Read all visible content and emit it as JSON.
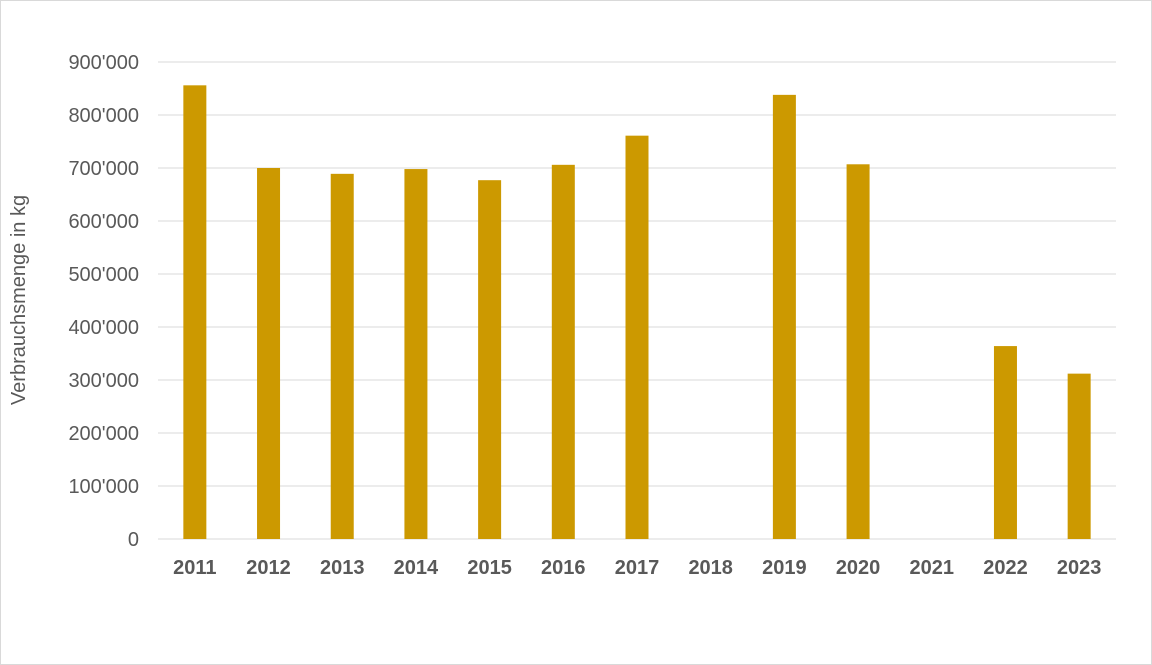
{
  "chart_data": {
    "type": "bar",
    "categories": [
      "2011",
      "2012",
      "2013",
      "2014",
      "2015",
      "2016",
      "2017",
      "2018",
      "2019",
      "2020",
      "2021",
      "2022",
      "2023"
    ],
    "values": [
      856000,
      700000,
      689000,
      698000,
      677000,
      706000,
      761000,
      null,
      838000,
      707000,
      null,
      364000,
      312000
    ],
    "ylabel": "Verbrauchsmenge in kg",
    "ylim": [
      0,
      900000
    ],
    "yticks": [
      0,
      100000,
      200000,
      300000,
      400000,
      500000,
      600000,
      700000,
      800000,
      900000
    ],
    "ytick_labels": [
      "0",
      "100'000",
      "200'000",
      "300'000",
      "400'000",
      "500'000",
      "600'000",
      "700'000",
      "800'000",
      "900'000"
    ],
    "grid": true,
    "bar_color": "#cc9900",
    "grid_color": "#d9d9d9"
  }
}
